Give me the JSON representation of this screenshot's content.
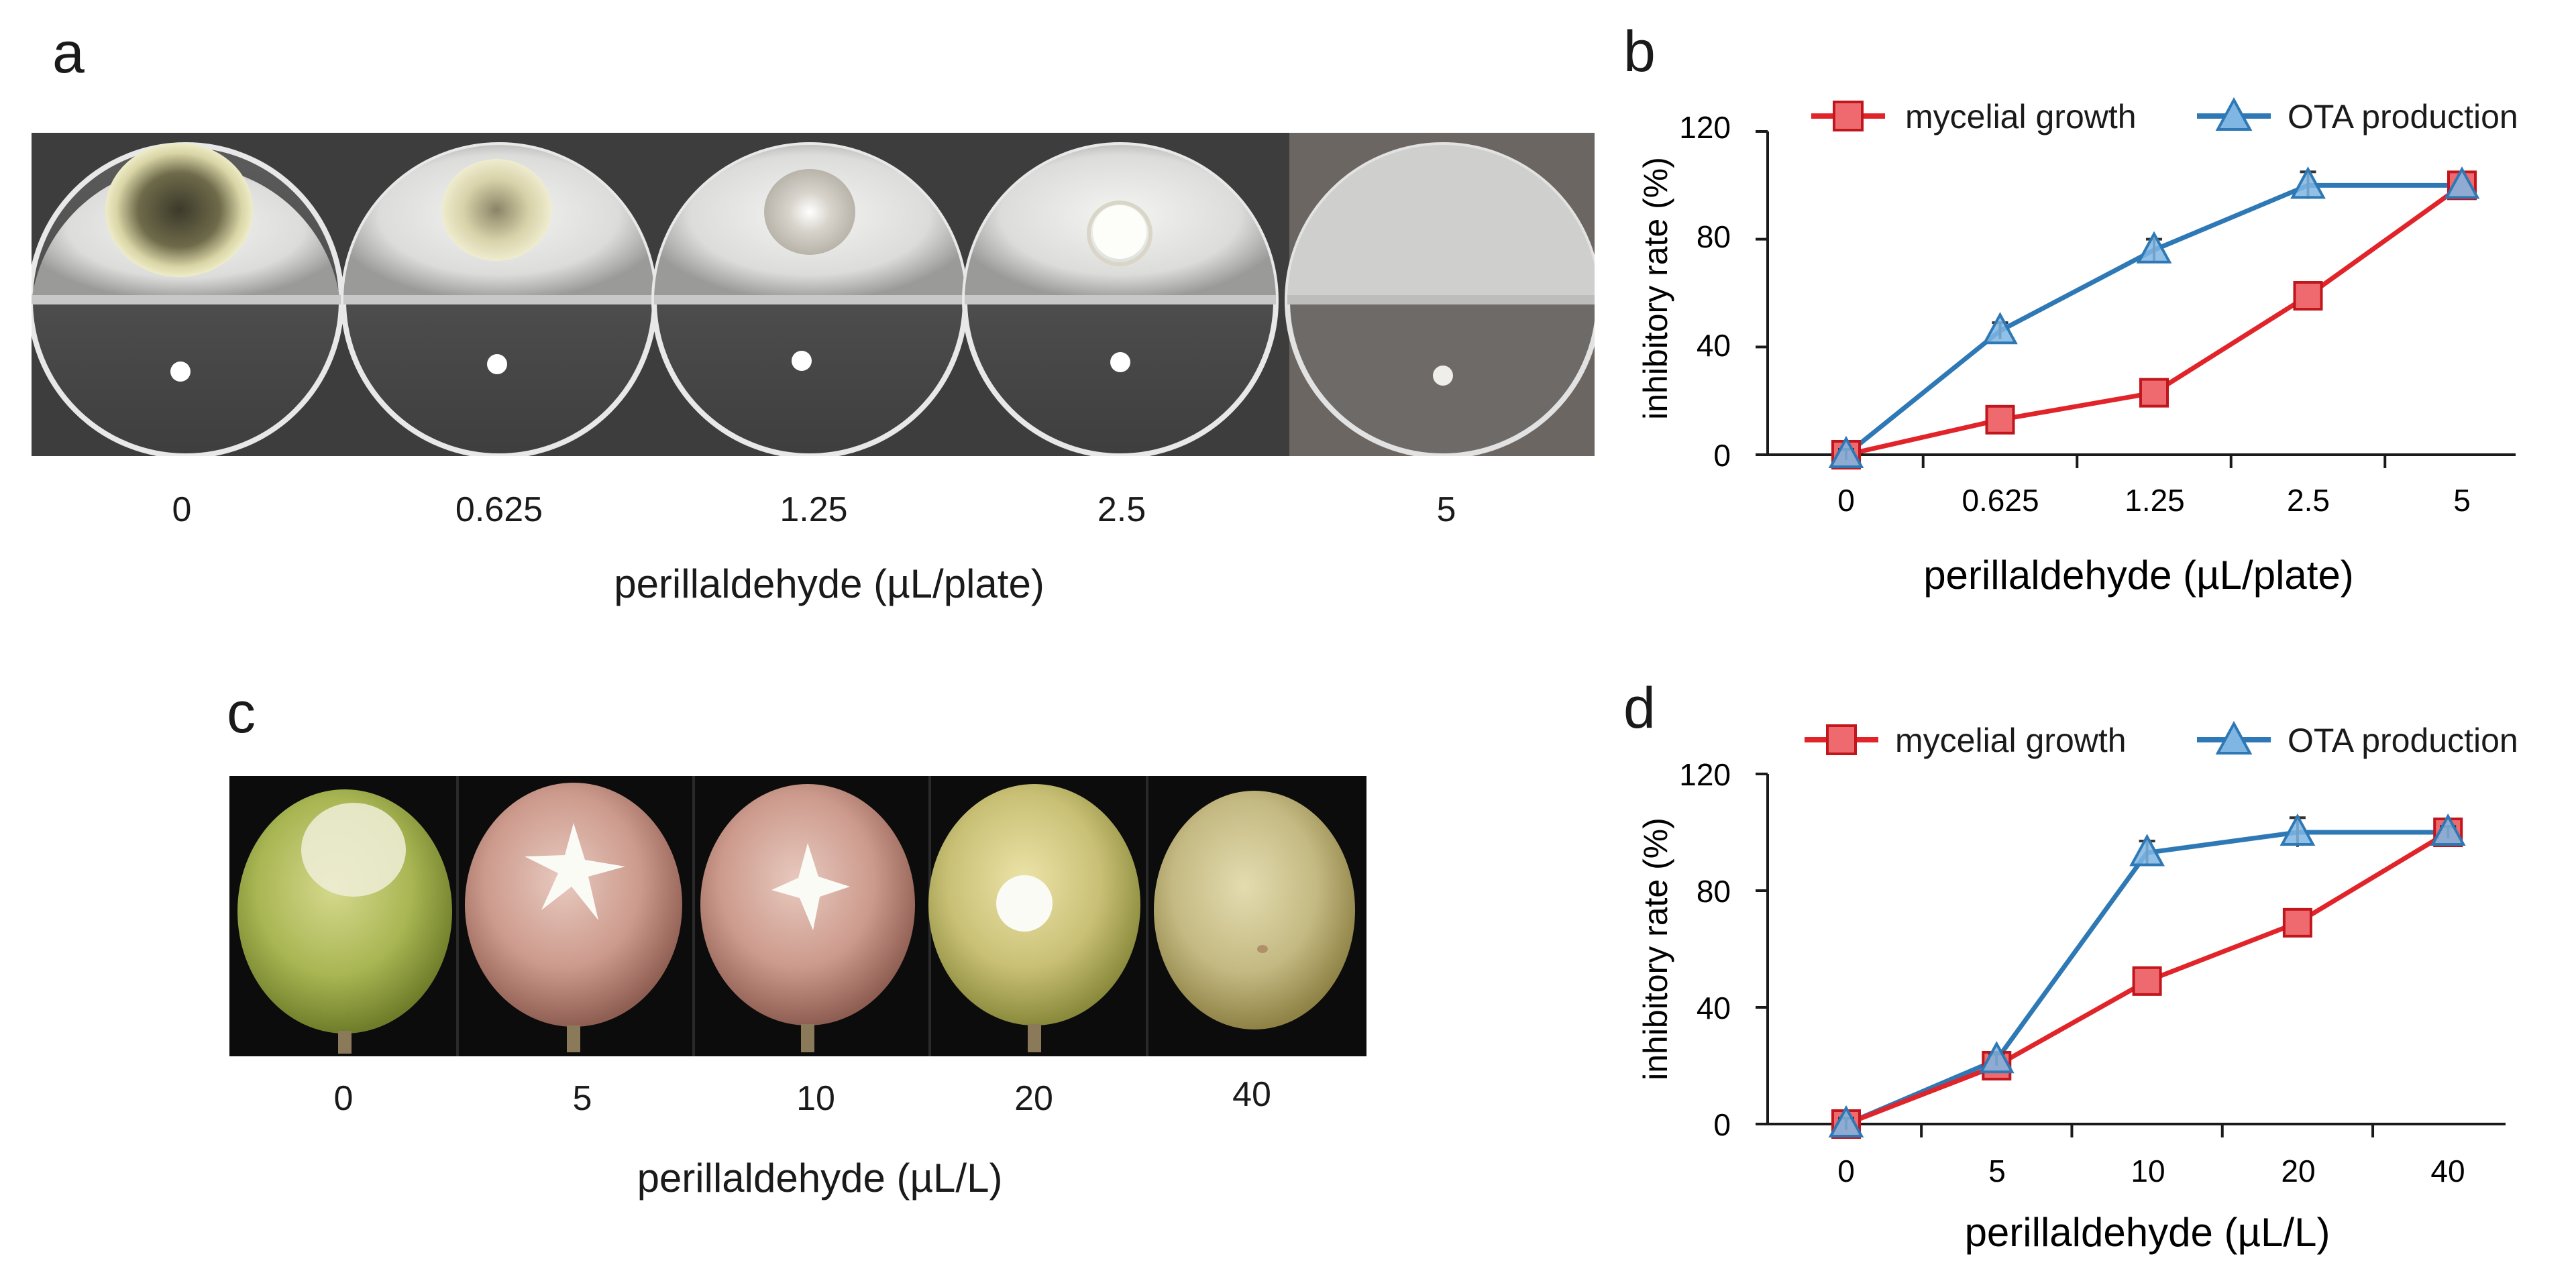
{
  "panels": {
    "a": {
      "letter": "a",
      "doses": [
        "0",
        "0.625",
        "1.25",
        "2.5",
        "5"
      ],
      "axis_title": "perillaldehyde (µL/plate)"
    },
    "c": {
      "letter": "c",
      "doses": [
        "0",
        "5",
        "10",
        "20",
        "40"
      ],
      "axis_title": "perillaldehyde (µL/L)"
    }
  },
  "colors": {
    "mycelial": "#e0242a",
    "ota_line": "#2e79b5",
    "ota_fill": "#7fb6e4",
    "axis": "#1a1a1a"
  },
  "chart_data": [
    {
      "letter": "b",
      "type": "line",
      "categories": [
        "0",
        "0.625",
        "1.25",
        "2.5",
        "5"
      ],
      "series": [
        {
          "name": "mycelial growth",
          "marker": "square",
          "values": [
            0,
            13,
            23,
            59,
            100
          ],
          "errors": [
            2,
            2,
            2,
            3,
            3
          ]
        },
        {
          "name": "OTA production",
          "marker": "triangle",
          "values": [
            0,
            46,
            76,
            100,
            100
          ],
          "errors": [
            2,
            3,
            4,
            5,
            0
          ]
        }
      ],
      "ylabel": "inhibitory rate (%)",
      "xlabel": "perillaldehyde (µL/plate)",
      "yticks": [
        "0",
        "40",
        "80",
        "120"
      ],
      "ylim": [
        0,
        120
      ],
      "legend": "top"
    },
    {
      "letter": "d",
      "type": "line",
      "categories": [
        "0",
        "5",
        "10",
        "20",
        "40"
      ],
      "series": [
        {
          "name": "mycelial growth",
          "marker": "square",
          "values": [
            0,
            20,
            49,
            69,
            100
          ],
          "errors": [
            2,
            2,
            2,
            2,
            3
          ]
        },
        {
          "name": "OTA production",
          "marker": "triangle",
          "values": [
            0,
            22,
            93,
            100,
            100
          ],
          "errors": [
            2,
            2,
            4,
            5,
            2
          ]
        }
      ],
      "ylabel": "inhibitory rate (%)",
      "xlabel": "perillaldehyde (µL/L)",
      "yticks": [
        "0",
        "40",
        "80",
        "120"
      ],
      "ylim": [
        0,
        120
      ],
      "legend": "top"
    }
  ]
}
